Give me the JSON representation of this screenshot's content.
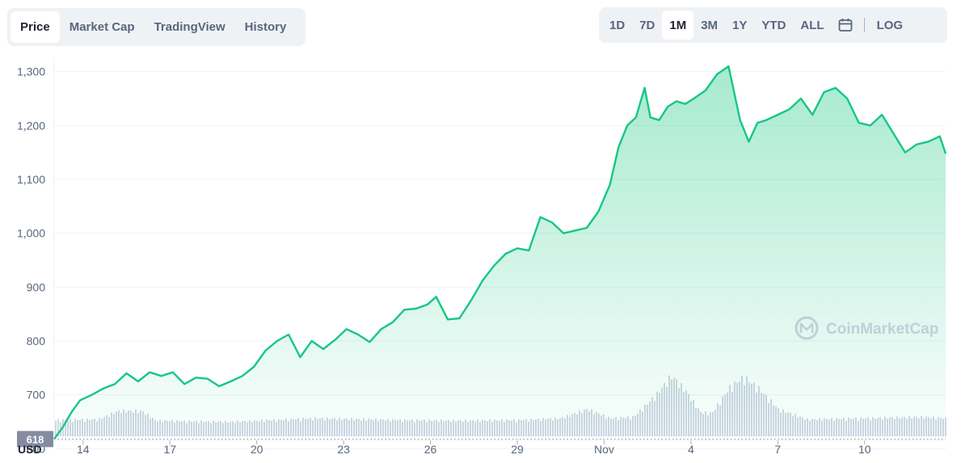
{
  "tabs": [
    "Price",
    "Market Cap",
    "TradingView",
    "History"
  ],
  "active_tab": "Price",
  "ranges": [
    "1D",
    "7D",
    "1M",
    "3M",
    "1Y",
    "YTD",
    "ALL"
  ],
  "active_range": "1M",
  "log_label": "LOG",
  "calendar_icon": "calendar-icon",
  "currency_label": "USD",
  "watermark": "CoinMarketCap",
  "colors": {
    "line": "#16c784",
    "fill_top": "#16c784",
    "volume": "#cfd6e4",
    "price_tag": "#858ca2"
  },
  "chart_data": {
    "type": "area",
    "xlabel": "",
    "ylabel": "",
    "y_ticks": [
      600,
      700,
      800,
      900,
      1000,
      1100,
      1200,
      1300
    ],
    "y_tick_labels": [
      "600",
      "700",
      "800",
      "900",
      "1,000",
      "1,100",
      "1,200",
      "1,300"
    ],
    "ylim": [
      578,
      1325
    ],
    "x_range_days": [
      0,
      30.8
    ],
    "x_ticks": [
      {
        "day": 1,
        "label": "14"
      },
      {
        "day": 4,
        "label": "17"
      },
      {
        "day": 7,
        "label": "20"
      },
      {
        "day": 10,
        "label": "23"
      },
      {
        "day": 13,
        "label": "26"
      },
      {
        "day": 16,
        "label": "29"
      },
      {
        "day": 19,
        "label": "Nov"
      },
      {
        "day": 22,
        "label": "4"
      },
      {
        "day": 25,
        "label": "7"
      },
      {
        "day": 28,
        "label": "10"
      }
    ],
    "open_price": 618,
    "open_price_label": "618",
    "grid": true,
    "series": [
      {
        "x": [
          0,
          0.3,
          0.6,
          0.9,
          1.3,
          1.7,
          2.1,
          2.5,
          2.9,
          3.3,
          3.7,
          4.1,
          4.5,
          4.9,
          5.3,
          5.7,
          6.1,
          6.5,
          6.9,
          7.3,
          7.7,
          8.1,
          8.5,
          8.9,
          9.3,
          9.7,
          10.1,
          10.5,
          10.9,
          11.3,
          11.7,
          12.1,
          12.5,
          12.9,
          13.2,
          13.6,
          14.0,
          14.4,
          14.8,
          15.2,
          15.6,
          16.0,
          16.4,
          16.8,
          17.2,
          17.6,
          18.0,
          18.4,
          18.8,
          19.2,
          19.5,
          19.8,
          20.1,
          20.4,
          20.6,
          20.9,
          21.2,
          21.5,
          21.8,
          22.1,
          22.5,
          22.9,
          23.3,
          23.7,
          24.0,
          24.3,
          24.6,
          25.0,
          25.4,
          25.8,
          26.2,
          26.6,
          27.0,
          27.4,
          27.8,
          28.2,
          28.6,
          29.0,
          29.4,
          29.8,
          30.2,
          30.6,
          30.8
        ],
        "values": [
          618,
          640,
          668,
          690,
          700,
          712,
          720,
          740,
          725,
          742,
          735,
          742,
          720,
          732,
          730,
          716,
          725,
          735,
          752,
          782,
          800,
          812,
          770,
          800,
          785,
          802,
          822,
          812,
          798,
          822,
          835,
          858,
          860,
          868,
          882,
          840,
          842,
          875,
          912,
          940,
          962,
          972,
          968,
          1030,
          1020,
          1000,
          1005,
          1010,
          1040,
          1090,
          1160,
          1200,
          1215,
          1270,
          1215,
          1210,
          1235,
          1245,
          1240,
          1250,
          1265,
          1295,
          1310,
          1210,
          1170,
          1205,
          1210,
          1220,
          1230,
          1250,
          1220,
          1262,
          1270,
          1250,
          1205,
          1200,
          1220,
          1185,
          1150,
          1165,
          1170,
          1180,
          1148
        ]
      }
    ],
    "volume": [
      {
        "day": 0,
        "v": 0.27
      },
      {
        "day": 1.5,
        "v": 0.28
      },
      {
        "day": 2.2,
        "v": 0.42
      },
      {
        "day": 3.0,
        "v": 0.42
      },
      {
        "day": 3.5,
        "v": 0.26
      },
      {
        "day": 6,
        "v": 0.24
      },
      {
        "day": 9,
        "v": 0.3
      },
      {
        "day": 12,
        "v": 0.27
      },
      {
        "day": 14,
        "v": 0.26
      },
      {
        "day": 16,
        "v": 0.27
      },
      {
        "day": 17.5,
        "v": 0.3
      },
      {
        "day": 18.4,
        "v": 0.45
      },
      {
        "day": 19.2,
        "v": 0.3
      },
      {
        "day": 20.0,
        "v": 0.32
      },
      {
        "day": 20.8,
        "v": 0.7
      },
      {
        "day": 21.3,
        "v": 1.0
      },
      {
        "day": 21.8,
        "v": 0.75
      },
      {
        "day": 22.3,
        "v": 0.4
      },
      {
        "day": 22.7,
        "v": 0.38
      },
      {
        "day": 23.3,
        "v": 0.8
      },
      {
        "day": 23.8,
        "v": 0.98
      },
      {
        "day": 24.3,
        "v": 0.8
      },
      {
        "day": 25.0,
        "v": 0.45
      },
      {
        "day": 26,
        "v": 0.28
      },
      {
        "day": 28,
        "v": 0.3
      },
      {
        "day": 30,
        "v": 0.32
      },
      {
        "day": 30.8,
        "v": 0.3
      }
    ]
  }
}
